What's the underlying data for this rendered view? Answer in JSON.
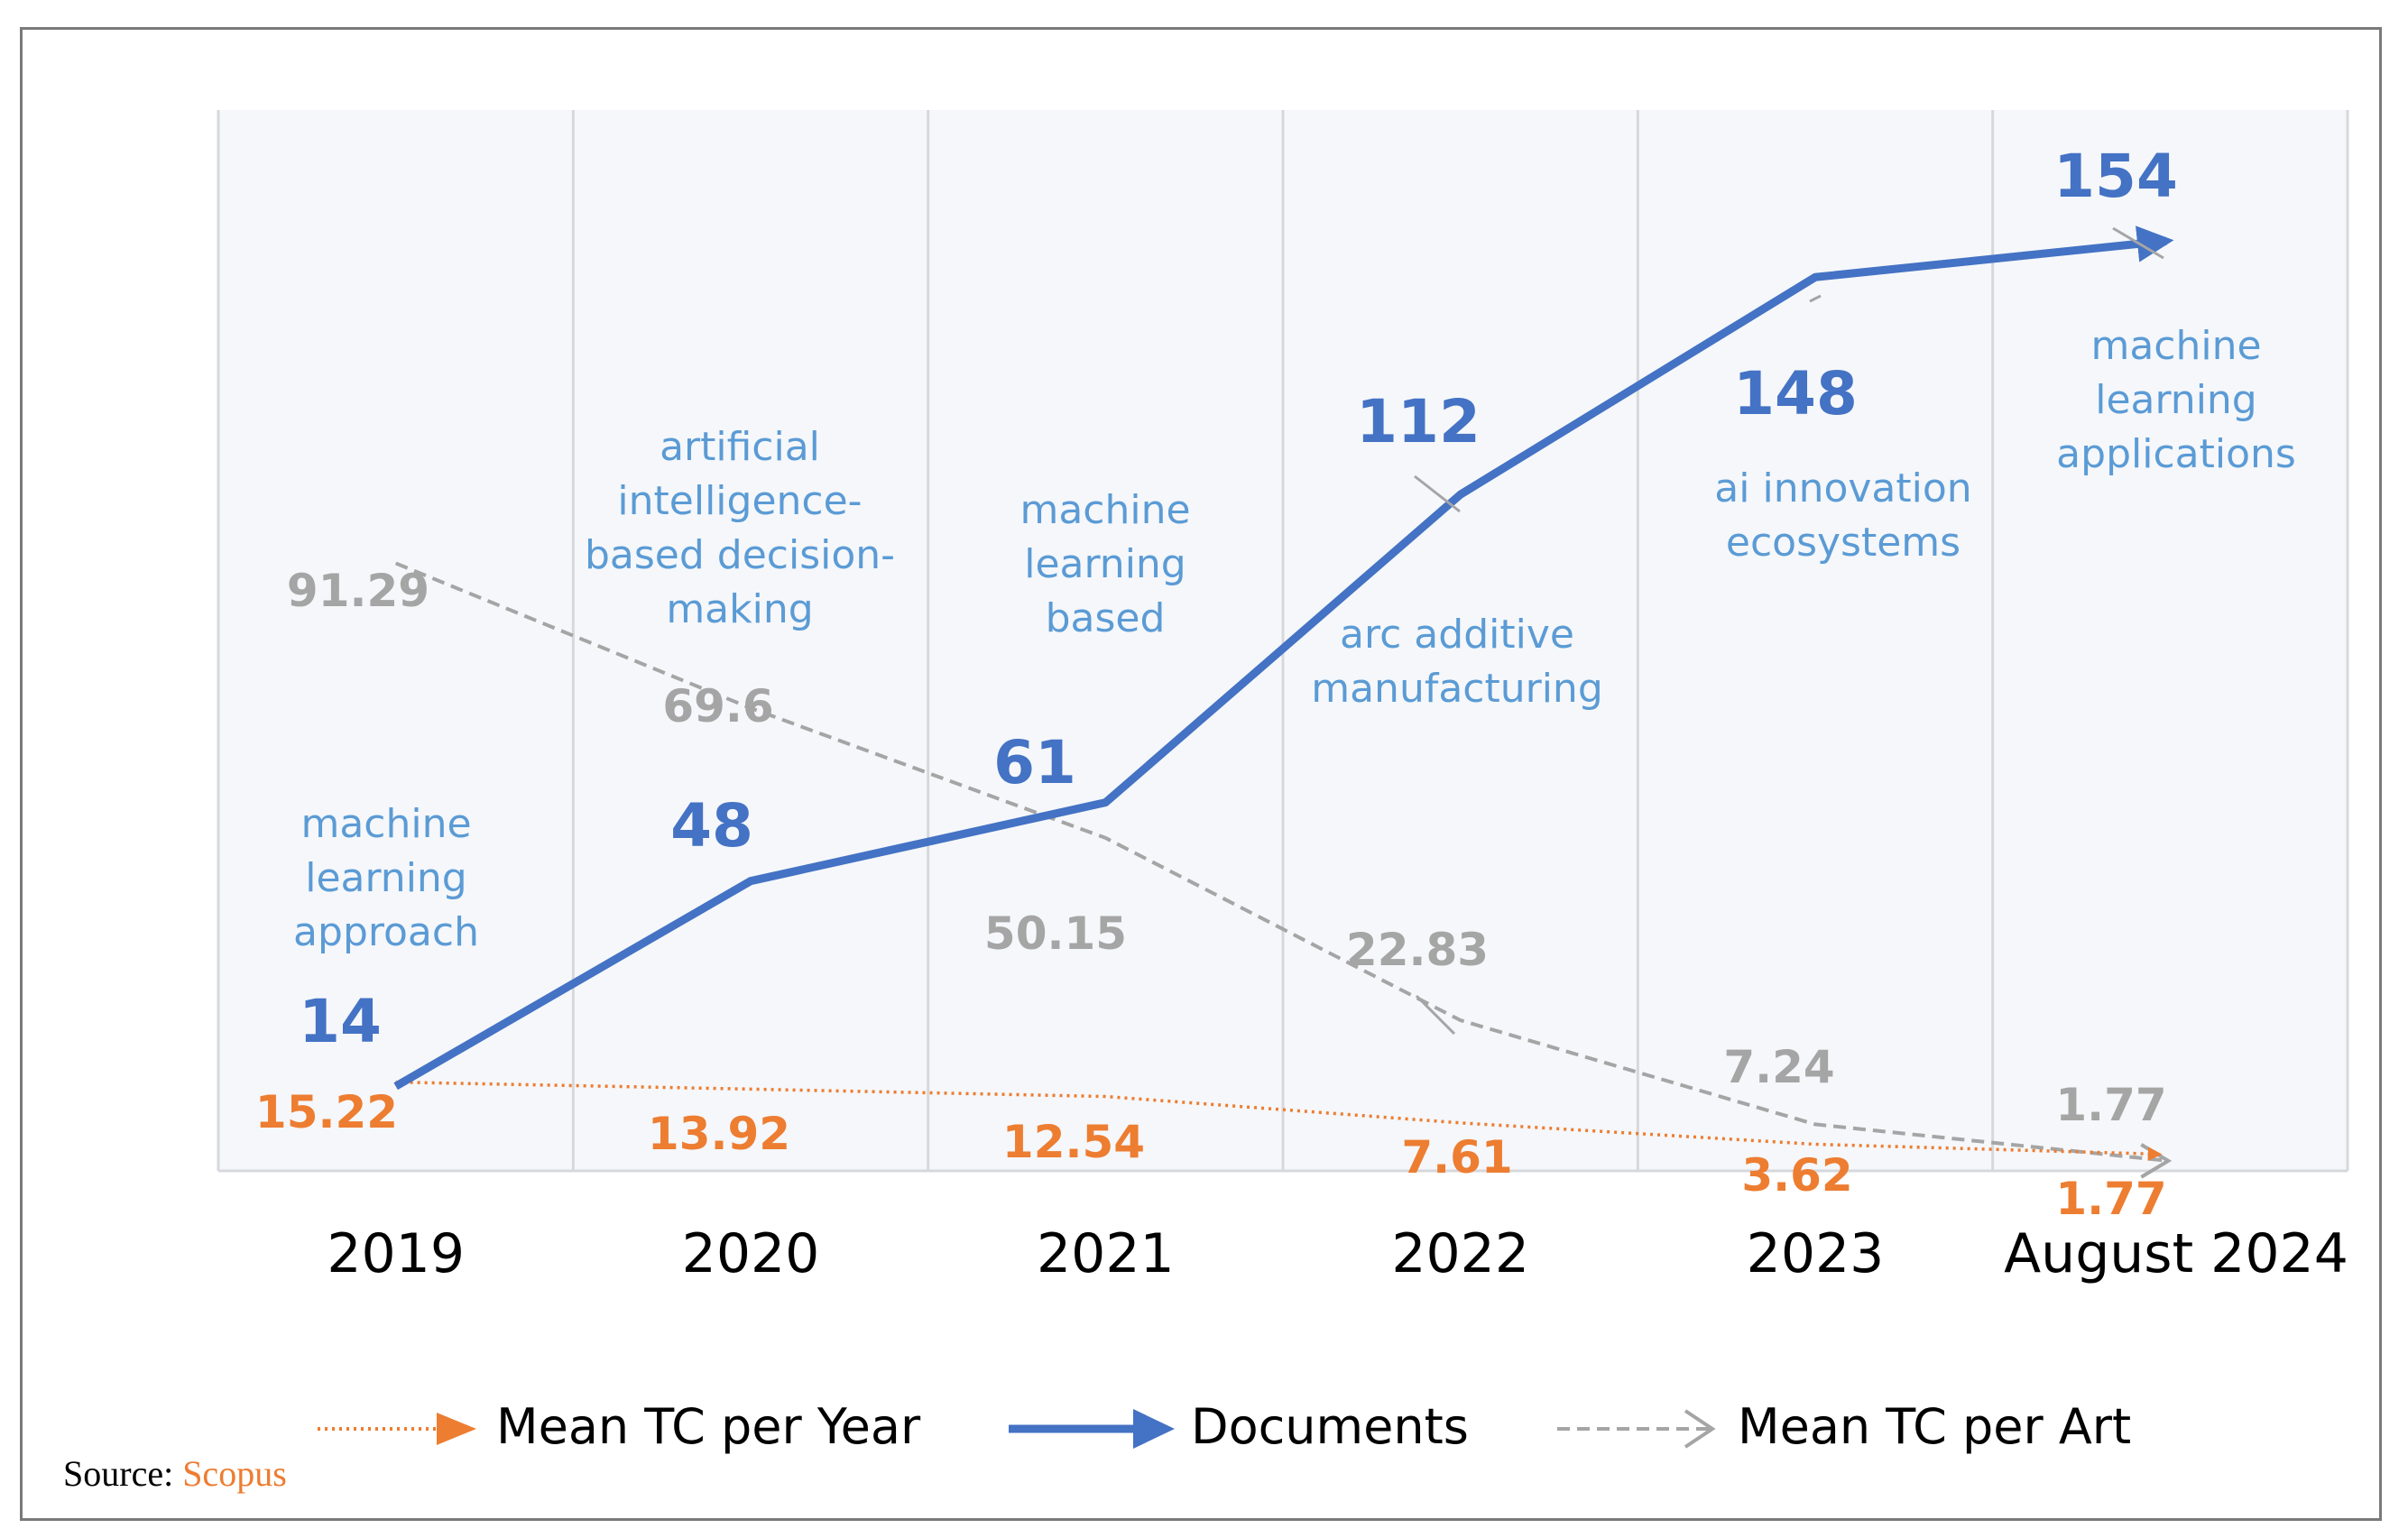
{
  "chart_data": {
    "type": "line",
    "categories": [
      "2019",
      "2020",
      "2021",
      "2022",
      "2023",
      "August 2024"
    ],
    "series": [
      {
        "name": "Documents",
        "values": [
          14,
          48,
          61,
          112,
          148,
          154
        ],
        "color": "#4472c4"
      },
      {
        "name": "Mean TC per Art",
        "values": [
          91.29,
          69.6,
          50.15,
          22.83,
          7.24,
          1.77
        ],
        "color": "#a5a5a5"
      },
      {
        "name": "Mean TC per Year",
        "values": [
          15.22,
          13.92,
          12.54,
          7.61,
          3.62,
          1.77
        ],
        "color": "#ed7d31"
      }
    ],
    "labels": {
      "documents": [
        "14",
        "48",
        "61",
        "112",
        "148",
        "154"
      ],
      "mean_tc_per_art": [
        "91.29",
        "69.6",
        "50.15",
        "22.83",
        "7.24",
        "1.77"
      ],
      "mean_tc_per_year": [
        "15.22",
        "13.92",
        "12.54",
        "7.61",
        "3.62",
        "1.77"
      ]
    },
    "topics": [
      [
        "machine",
        "learning",
        "approach"
      ],
      [
        "artificial",
        "intelligence-",
        "based decision-",
        "making"
      ],
      [
        "machine",
        "learning",
        "based"
      ],
      [
        "arc additive",
        "manufacturing"
      ],
      [
        "ai innovation",
        "ecosystems"
      ],
      [
        "machine",
        "learning",
        "applications"
      ]
    ],
    "legend": [
      "Mean TC per Year",
      "Documents",
      "Mean TC per Art"
    ],
    "legend_position": "bottom",
    "grid": "vertical",
    "title": "",
    "xlabel": "",
    "ylabel": ""
  },
  "source": {
    "label": "Source:",
    "name": "Scopus"
  },
  "colors": {
    "topic": "#5b9bd5",
    "plot_background": "#f5f7fa",
    "gridline": "#d6d8dc"
  }
}
